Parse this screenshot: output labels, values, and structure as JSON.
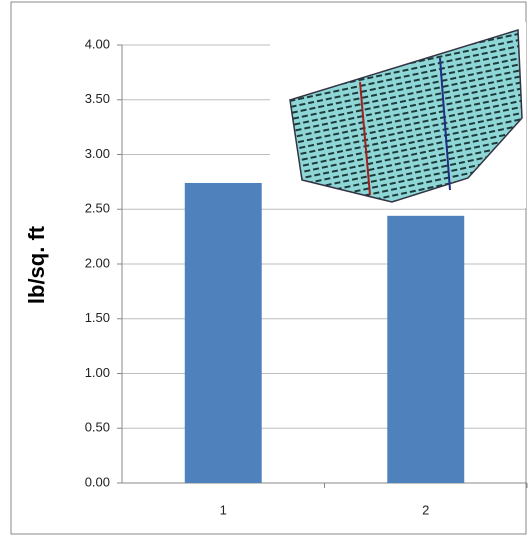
{
  "chart_data": {
    "type": "bar",
    "y_label": "lb/sq. ft",
    "categories": [
      "1",
      "2"
    ],
    "values": [
      2.74,
      2.44
    ],
    "color": "#4f81bd",
    "ylim": [
      0,
      4
    ],
    "yticks": [
      {
        "value": 0,
        "label": "0.00"
      },
      {
        "value": 0.5,
        "label": "0.50"
      },
      {
        "value": 1,
        "label": "1.00"
      },
      {
        "value": 1.5,
        "label": "1.50"
      },
      {
        "value": 2,
        "label": "2.00"
      },
      {
        "value": 2.5,
        "label": "2.50"
      },
      {
        "value": 3,
        "label": "3.00"
      },
      {
        "value": 3.5,
        "label": "3.50"
      },
      {
        "value": 4,
        "label": "4.00"
      }
    ],
    "grid": true
  }
}
